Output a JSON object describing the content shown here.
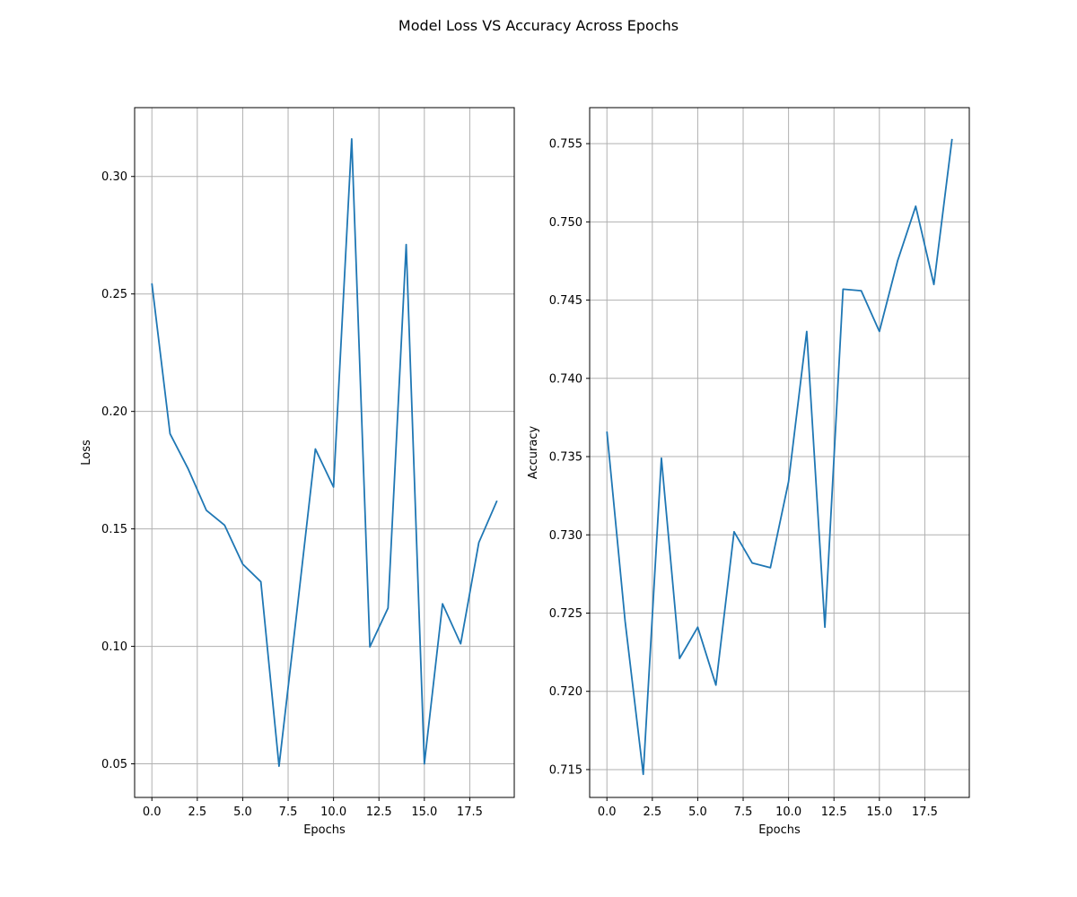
{
  "title": "Model Loss VS Accuracy Across Epochs",
  "chart_data": [
    {
      "type": "line",
      "title": "",
      "xlabel": "Epochs",
      "ylabel": "Loss",
      "xlim": [
        -0.95,
        19.95
      ],
      "ylim": [
        0.0357,
        0.3293
      ],
      "xticks": [
        0.0,
        2.5,
        5.0,
        7.5,
        10.0,
        12.5,
        15.0,
        17.5
      ],
      "xtick_labels": [
        "0.0",
        "2.5",
        "5.0",
        "7.5",
        "10.0",
        "12.5",
        "15.0",
        "17.5"
      ],
      "yticks": [
        0.05,
        0.1,
        0.15,
        0.2,
        0.25,
        0.3
      ],
      "ytick_labels": [
        "0.05",
        "0.10",
        "0.15",
        "0.20",
        "0.25",
        "0.30"
      ],
      "grid": true,
      "color": "#1f77b4",
      "x": [
        0,
        1,
        2,
        3,
        4,
        5,
        6,
        7,
        8,
        9,
        10,
        11,
        12,
        13,
        14,
        15,
        16,
        17,
        18,
        19
      ],
      "values": [
        0.2545,
        0.1905,
        0.1755,
        0.1579,
        0.1516,
        0.135,
        0.1275,
        0.049,
        0.116,
        0.184,
        0.1678,
        0.316,
        0.0998,
        0.1163,
        0.271,
        0.05,
        0.1181,
        0.1011,
        0.1442,
        0.162
      ]
    },
    {
      "type": "line",
      "title": "",
      "xlabel": "Epochs",
      "ylabel": "Accuracy",
      "xlim": [
        -0.95,
        19.95
      ],
      "ylim": [
        0.71322,
        0.7573
      ],
      "xticks": [
        0.0,
        2.5,
        5.0,
        7.5,
        10.0,
        12.5,
        15.0,
        17.5
      ],
      "xtick_labels": [
        "0.0",
        "2.5",
        "5.0",
        "7.5",
        "10.0",
        "12.5",
        "15.0",
        "17.5"
      ],
      "yticks": [
        0.715,
        0.72,
        0.725,
        0.73,
        0.735,
        0.74,
        0.745,
        0.75,
        0.755
      ],
      "ytick_labels": [
        "0.715",
        "0.720",
        "0.725",
        "0.730",
        "0.735",
        "0.740",
        "0.745",
        "0.750",
        "0.755"
      ],
      "grid": true,
      "color": "#1f77b4",
      "x": [
        0,
        1,
        2,
        3,
        4,
        5,
        6,
        7,
        8,
        9,
        10,
        11,
        12,
        13,
        14,
        15,
        16,
        17,
        18,
        19
      ],
      "values": [
        0.7366,
        0.7245,
        0.7147,
        0.7349,
        0.7221,
        0.7241,
        0.7204,
        0.7302,
        0.7282,
        0.7279,
        0.7334,
        0.743,
        0.7241,
        0.7457,
        0.7456,
        0.743,
        0.7475,
        0.751,
        0.746,
        0.7553
      ]
    }
  ]
}
